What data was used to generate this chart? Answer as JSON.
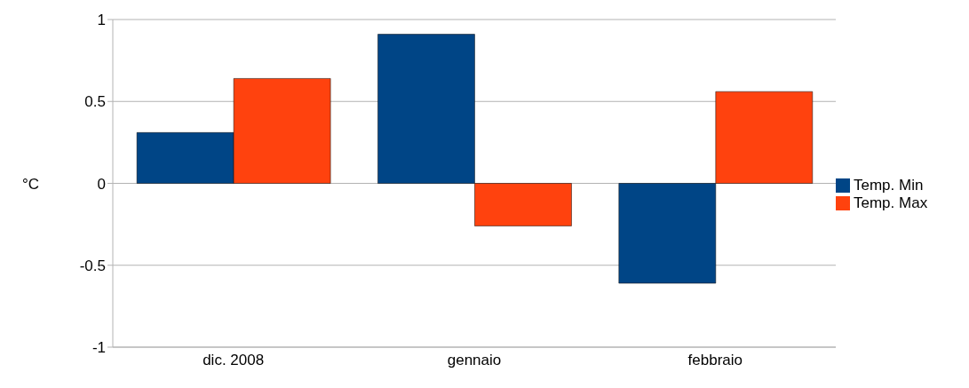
{
  "chart_data": {
    "type": "bar",
    "ylabel": "°C",
    "categories": [
      "dic. 2008",
      "gennaio",
      "febbraio"
    ],
    "series": [
      {
        "name": "Temp. Min",
        "color": "#004586",
        "values": [
          0.31,
          0.91,
          -0.61
        ]
      },
      {
        "name": "Temp. Max",
        "color": "#ff420e",
        "values": [
          0.64,
          -0.26,
          0.56
        ]
      }
    ],
    "ylim": [
      -1,
      1
    ],
    "yticks": [
      -1,
      -0.5,
      0,
      0.5,
      1
    ],
    "grid": "y",
    "legend": "right"
  }
}
